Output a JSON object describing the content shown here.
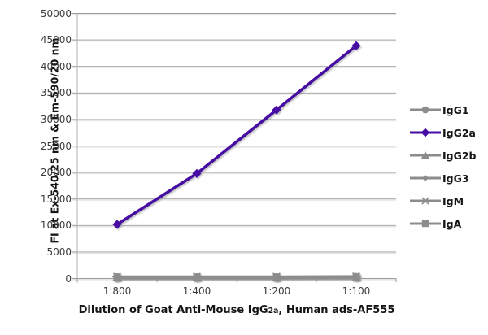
{
  "chart_data": {
    "type": "line",
    "categories": [
      "1:800",
      "1:400",
      "1:200",
      "1:100"
    ],
    "series": [
      {
        "name": "IgG1",
        "marker": "circle",
        "color": "#8c8c8c",
        "values": [
          150,
          150,
          150,
          200
        ]
      },
      {
        "name": "IgG2a",
        "marker": "diamond",
        "color": "#460ca3",
        "values": [
          10200,
          19800,
          31800,
          43900
        ]
      },
      {
        "name": "IgG2b",
        "marker": "triangle",
        "color": "#8c8c8c",
        "values": [
          250,
          250,
          250,
          300
        ]
      },
      {
        "name": "IgG3",
        "marker": "diamond-small",
        "color": "#8c8c8c",
        "values": [
          200,
          200,
          200,
          250
        ]
      },
      {
        "name": "IgM",
        "marker": "asterisk",
        "color": "#8c8c8c",
        "values": [
          350,
          350,
          350,
          400
        ]
      },
      {
        "name": "IgA",
        "marker": "square",
        "color": "#8c8c8c",
        "values": [
          300,
          300,
          300,
          350
        ]
      }
    ],
    "ylabel": "FI at Ex-540/25 nm & Em-590/20 nm",
    "xlabel_prefix": "Dilution of Goat Anti-Mouse IgG",
    "xlabel_sub": "2a",
    "xlabel_suffix": ", Human ads-AF555",
    "ylim": [
      0,
      50000
    ],
    "ytick_step": 5000,
    "yticks": [
      "0",
      "5000",
      "10000",
      "15000",
      "20000",
      "25000",
      "30000",
      "35000",
      "40000",
      "45000",
      "50000"
    ],
    "grid": true,
    "legend_position": "right",
    "colors": {
      "gridline": "#9c9c9c",
      "axis": "#b2b2b2",
      "tick_text": "#3a3a3a",
      "title_text": "#151515",
      "background": "#ffffff"
    }
  }
}
